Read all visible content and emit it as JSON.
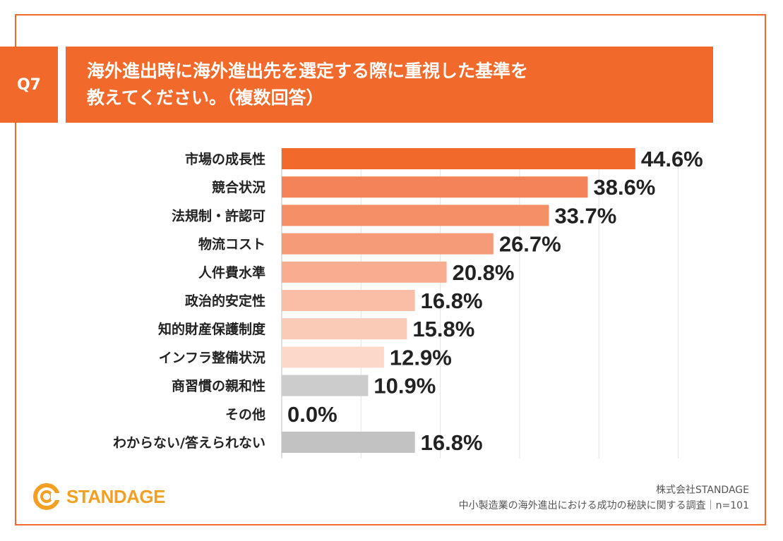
{
  "header": {
    "question_no": "Q7",
    "title_line1": "海外進出時に海外進出先を選定する際に重視した基準を",
    "title_line2": "教えてください。（複数回答）"
  },
  "chart_data": {
    "type": "bar",
    "orientation": "horizontal",
    "title": "海外進出時に海外進出先を選定する際に重視した基準を教えてください。（複数回答）",
    "xlim": [
      0,
      50
    ],
    "grid": true,
    "categories": [
      "市場の成長性",
      "競合状況",
      "法規制・許認可",
      "物流コスト",
      "人件費水準",
      "政治的安定性",
      "知的財産保護制度",
      "インフラ整備状況",
      "商習慣の親和性",
      "その他",
      "わからない/答えられない"
    ],
    "values": [
      44.6,
      38.6,
      33.7,
      26.7,
      20.8,
      16.8,
      15.8,
      12.9,
      10.9,
      0.0,
      16.8
    ],
    "value_labels": [
      "44.6%",
      "38.6%",
      "33.7%",
      "26.7%",
      "20.8%",
      "16.8%",
      "15.8%",
      "12.9%",
      "10.9%",
      "0.0%",
      "16.8%"
    ],
    "colors": [
      "#f26a2b",
      "#f4835a",
      "#f58f68",
      "#f69b78",
      "#f8ad90",
      "#f9bea5",
      "#facbb7",
      "#fcd8ca",
      "#cccccc",
      "#cccccc",
      "#c2c2c2"
    ]
  },
  "logo": {
    "text": "STANDAGE",
    "icon": "standage-logo-icon"
  },
  "footer": {
    "company": "株式会社STANDAGE",
    "source": "中小製造業の海外進出における成功の秘訣に関する調査｜n=101"
  }
}
